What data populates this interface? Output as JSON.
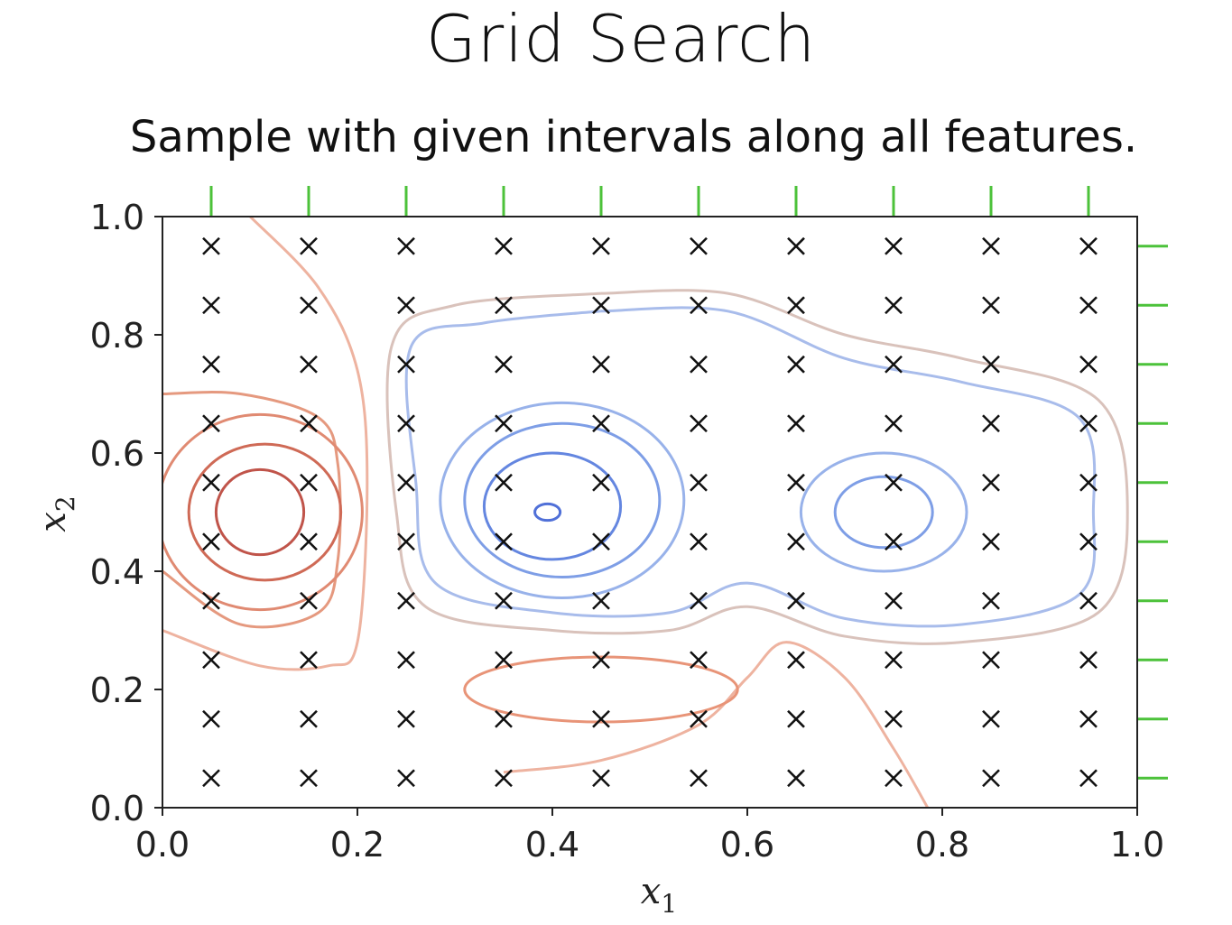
{
  "slide": {
    "title": "Grid Search",
    "subtitle": "Sample with given intervals along all features."
  },
  "chart_data": {
    "type": "scatter",
    "title": "Grid Search",
    "subtitle": "Sample with given intervals along all features.",
    "xlabel_main": "x",
    "xlabel_sub": "1",
    "ylabel_main": "x",
    "ylabel_sub": "2",
    "xlim": [
      0,
      1
    ],
    "ylim": [
      0,
      1
    ],
    "xticks": [
      0.0,
      0.2,
      0.4,
      0.6,
      0.8,
      1.0
    ],
    "yticks": [
      0.0,
      0.2,
      0.4,
      0.6,
      0.8,
      1.0
    ],
    "xtick_labels": [
      "0.0",
      "0.2",
      "0.4",
      "0.6",
      "0.8",
      "1.0"
    ],
    "ytick_labels": [
      "0.0",
      "0.2",
      "0.4",
      "0.6",
      "0.8",
      "1.0"
    ],
    "grid": false,
    "marker": "x",
    "grid_x": [
      0.05,
      0.15,
      0.25,
      0.35,
      0.45,
      0.55,
      0.65,
      0.75,
      0.85,
      0.95
    ],
    "grid_y": [
      0.05,
      0.15,
      0.25,
      0.35,
      0.45,
      0.55,
      0.65,
      0.75,
      0.85,
      0.95
    ],
    "rug_color": "#4cc23a",
    "marker_color": "#111111",
    "contours": [
      {
        "cx": 0.1,
        "cy": 0.5,
        "rx": 0.045,
        "ry": 0.072,
        "color": "#c0544a"
      },
      {
        "cx": 0.105,
        "cy": 0.5,
        "rx": 0.078,
        "ry": 0.115,
        "color": "#cf6a56"
      },
      {
        "cx": 0.1,
        "cy": 0.5,
        "rx": 0.105,
        "ry": 0.165,
        "color": "#e08a72"
      },
      {
        "cx": 0.395,
        "cy": 0.5,
        "rx": 0.013,
        "ry": 0.014,
        "color": "#5070d8"
      },
      {
        "cx": 0.4,
        "cy": 0.51,
        "rx": 0.07,
        "ry": 0.09,
        "color": "#6486e0"
      },
      {
        "cx": 0.41,
        "cy": 0.52,
        "rx": 0.1,
        "ry": 0.13,
        "color": "#7e9ee6"
      },
      {
        "cx": 0.41,
        "cy": 0.52,
        "rx": 0.125,
        "ry": 0.165,
        "color": "#98b2ea"
      },
      {
        "cx": 0.74,
        "cy": 0.5,
        "rx": 0.05,
        "ry": 0.06,
        "color": "#7e9ee6"
      },
      {
        "cx": 0.74,
        "cy": 0.5,
        "rx": 0.085,
        "ry": 0.1,
        "color": "#98b2ea"
      },
      {
        "cx": 0.45,
        "cy": 0.2,
        "rx": 0.14,
        "ry": 0.055,
        "color": "#e89478"
      }
    ],
    "contour_paths": [
      {
        "points": [
          [
            0.45,
            0.84
          ],
          [
            0.33,
            0.82
          ],
          [
            0.255,
            0.78
          ],
          [
            0.26,
            0.55
          ],
          [
            0.28,
            0.38
          ],
          [
            0.4,
            0.33
          ],
          [
            0.52,
            0.33
          ],
          [
            0.6,
            0.38
          ],
          [
            0.7,
            0.32
          ],
          [
            0.82,
            0.31
          ],
          [
            0.94,
            0.36
          ],
          [
            0.955,
            0.5
          ],
          [
            0.94,
            0.66
          ],
          [
            0.82,
            0.72
          ],
          [
            0.7,
            0.76
          ],
          [
            0.58,
            0.84
          ],
          [
            0.45,
            0.84
          ]
        ],
        "color": "#a8bceb"
      },
      {
        "points": [
          [
            0.45,
            0.87
          ],
          [
            0.3,
            0.85
          ],
          [
            0.235,
            0.78
          ],
          [
            0.24,
            0.5
          ],
          [
            0.27,
            0.34
          ],
          [
            0.4,
            0.3
          ],
          [
            0.52,
            0.3
          ],
          [
            0.6,
            0.34
          ],
          [
            0.7,
            0.29
          ],
          [
            0.82,
            0.28
          ],
          [
            0.96,
            0.33
          ],
          [
            0.99,
            0.5
          ],
          [
            0.96,
            0.69
          ],
          [
            0.82,
            0.76
          ],
          [
            0.7,
            0.8
          ],
          [
            0.58,
            0.87
          ],
          [
            0.45,
            0.87
          ]
        ],
        "color": "#d9c2bb"
      },
      {
        "points": [
          [
            0.35,
            0.06
          ],
          [
            0.45,
            0.08
          ],
          [
            0.55,
            0.14
          ],
          [
            0.6,
            0.22
          ],
          [
            0.64,
            0.28
          ],
          [
            0.7,
            0.22
          ],
          [
            0.75,
            0.1
          ],
          [
            0.785,
            0.0
          ]
        ],
        "color": "#eeb3a0"
      },
      {
        "points": [
          [
            0.09,
            1.0
          ],
          [
            0.16,
            0.88
          ],
          [
            0.2,
            0.74
          ],
          [
            0.21,
            0.55
          ],
          [
            0.2,
            0.28
          ],
          [
            0.17,
            0.24
          ],
          [
            0.1,
            0.24
          ],
          [
            0.0,
            0.3
          ]
        ],
        "color": "#eeb3a0"
      },
      {
        "points": [
          [
            0.0,
            0.7
          ],
          [
            0.08,
            0.7
          ],
          [
            0.16,
            0.66
          ],
          [
            0.18,
            0.58
          ],
          [
            0.18,
            0.42
          ],
          [
            0.16,
            0.33
          ],
          [
            0.08,
            0.31
          ],
          [
            0.0,
            0.4
          ]
        ],
        "color": "#e5997f"
      }
    ]
  }
}
